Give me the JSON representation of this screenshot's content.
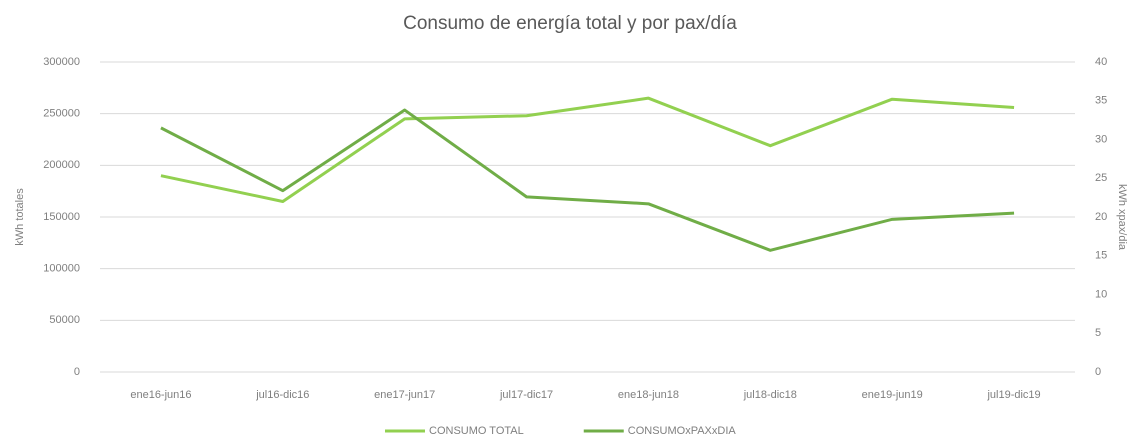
{
  "chart_data": {
    "type": "line",
    "title": "Consumo de energía total y por pax/día",
    "ylabel": "kWh totales",
    "y2label": "kWh xpax/dia",
    "categories": [
      "ene16-jun16",
      "jul16-dic16",
      "ene17-jun17",
      "jul17-dic17",
      "ene18-jun18",
      "jul18-dic18",
      "ene19-jun19",
      "jul19-dic19"
    ],
    "series": [
      {
        "name": "CONSUMO TOTAL",
        "color": "#92d050",
        "values": [
          190000,
          165000,
          245000,
          248000,
          265000,
          219000,
          264000,
          256000
        ]
      },
      {
        "name": "CONSUMOxPAXxDIA",
        "color": "#70ad47",
        "axis": "y2",
        "values": [
          31.5,
          23.4,
          33.8,
          22.6,
          21.7,
          15.7,
          19.7,
          20.5
        ]
      }
    ],
    "ylim": [
      0,
      300000
    ],
    "yticks": [
      0,
      50000,
      100000,
      150000,
      200000,
      250000,
      300000
    ],
    "y2lim": [
      0,
      40
    ],
    "y2ticks": [
      0,
      5,
      10,
      15,
      20,
      25,
      30,
      35,
      40
    ],
    "grid": true,
    "legend": "bottom"
  }
}
